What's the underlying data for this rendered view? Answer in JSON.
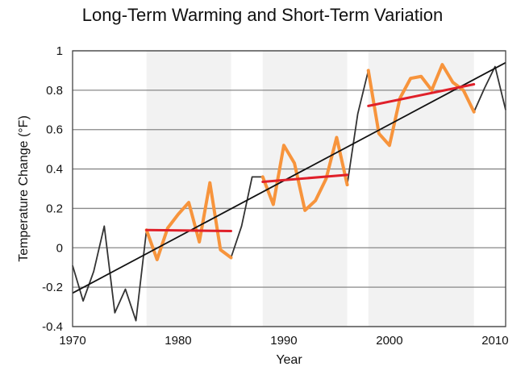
{
  "chart_data": {
    "type": "line",
    "title": "Long-Term Warming and Short-Term Variation",
    "xlabel": "Year",
    "ylabel": "Temperature Change (°F)",
    "xlim": [
      1970,
      2011
    ],
    "ylim": [
      -0.4,
      1.0
    ],
    "x_ticks": [
      1970,
      1980,
      1990,
      2000,
      2010
    ],
    "y_ticks": [
      -0.4,
      -0.2,
      0,
      0.2,
      0.4,
      0.6,
      0.8,
      1
    ],
    "y_tick_labels": [
      "-0.4",
      "-0.2",
      "0",
      "0.2",
      "0.4",
      "0.6",
      "0.8",
      "1"
    ],
    "grid": "horizontal",
    "shaded_periods": [
      [
        1977,
        1985
      ],
      [
        1988,
        1996
      ],
      [
        1998,
        2008
      ]
    ],
    "colors": {
      "annual": "#333333",
      "highlight": "#f7943c",
      "period_trend": "#e0202a",
      "long_trend": "#111111",
      "shade": "#f2f2f2",
      "grid": "#888888"
    },
    "series": [
      {
        "role": "annual",
        "x": [
          1970,
          1971,
          1972,
          1973,
          1974,
          1975,
          1976,
          1977,
          1978,
          1979,
          1980,
          1981,
          1982,
          1983,
          1984,
          1985,
          1986,
          1987,
          1988,
          1989,
          1990,
          1991,
          1992,
          1993,
          1994,
          1995,
          1996,
          1997,
          1998,
          1999,
          2000,
          2001,
          2002,
          2003,
          2004,
          2005,
          2006,
          2007,
          2008,
          2009,
          2010,
          2011
        ],
        "y": [
          -0.09,
          -0.27,
          -0.12,
          0.11,
          -0.33,
          -0.21,
          -0.37,
          0.09,
          -0.06,
          0.1,
          0.17,
          0.23,
          0.03,
          0.33,
          -0.01,
          -0.05,
          0.11,
          0.36,
          0.36,
          0.22,
          0.52,
          0.43,
          0.19,
          0.24,
          0.35,
          0.56,
          0.32,
          0.68,
          0.9,
          0.58,
          0.52,
          0.76,
          0.86,
          0.87,
          0.8,
          0.93,
          0.84,
          0.8,
          0.69,
          0.81,
          0.92,
          0.7
        ]
      },
      {
        "role": "highlight",
        "segments": [
          {
            "x": [
              1977,
              1978,
              1979,
              1980,
              1981,
              1982,
              1983,
              1984,
              1985
            ],
            "y": [
              0.09,
              -0.06,
              0.1,
              0.17,
              0.23,
              0.03,
              0.33,
              -0.01,
              -0.05
            ]
          },
          {
            "x": [
              1988,
              1989,
              1990,
              1991,
              1992,
              1993,
              1994,
              1995,
              1996
            ],
            "y": [
              0.36,
              0.22,
              0.52,
              0.43,
              0.19,
              0.24,
              0.35,
              0.56,
              0.32
            ]
          },
          {
            "x": [
              1998,
              1999,
              2000,
              2001,
              2002,
              2003,
              2004,
              2005,
              2006,
              2007,
              2008
            ],
            "y": [
              0.9,
              0.58,
              0.52,
              0.76,
              0.86,
              0.87,
              0.8,
              0.93,
              0.84,
              0.8,
              0.69
            ]
          }
        ]
      },
      {
        "role": "period_trend",
        "segments": [
          {
            "x": [
              1977,
              1985
            ],
            "y": [
              0.09,
              0.085
            ]
          },
          {
            "x": [
              1988,
              1996
            ],
            "y": [
              0.335,
              0.37
            ]
          },
          {
            "x": [
              1998,
              2008
            ],
            "y": [
              0.72,
              0.83
            ]
          }
        ]
      },
      {
        "role": "long_trend",
        "x": [
          1970,
          2011
        ],
        "y": [
          -0.23,
          0.94
        ]
      }
    ]
  }
}
